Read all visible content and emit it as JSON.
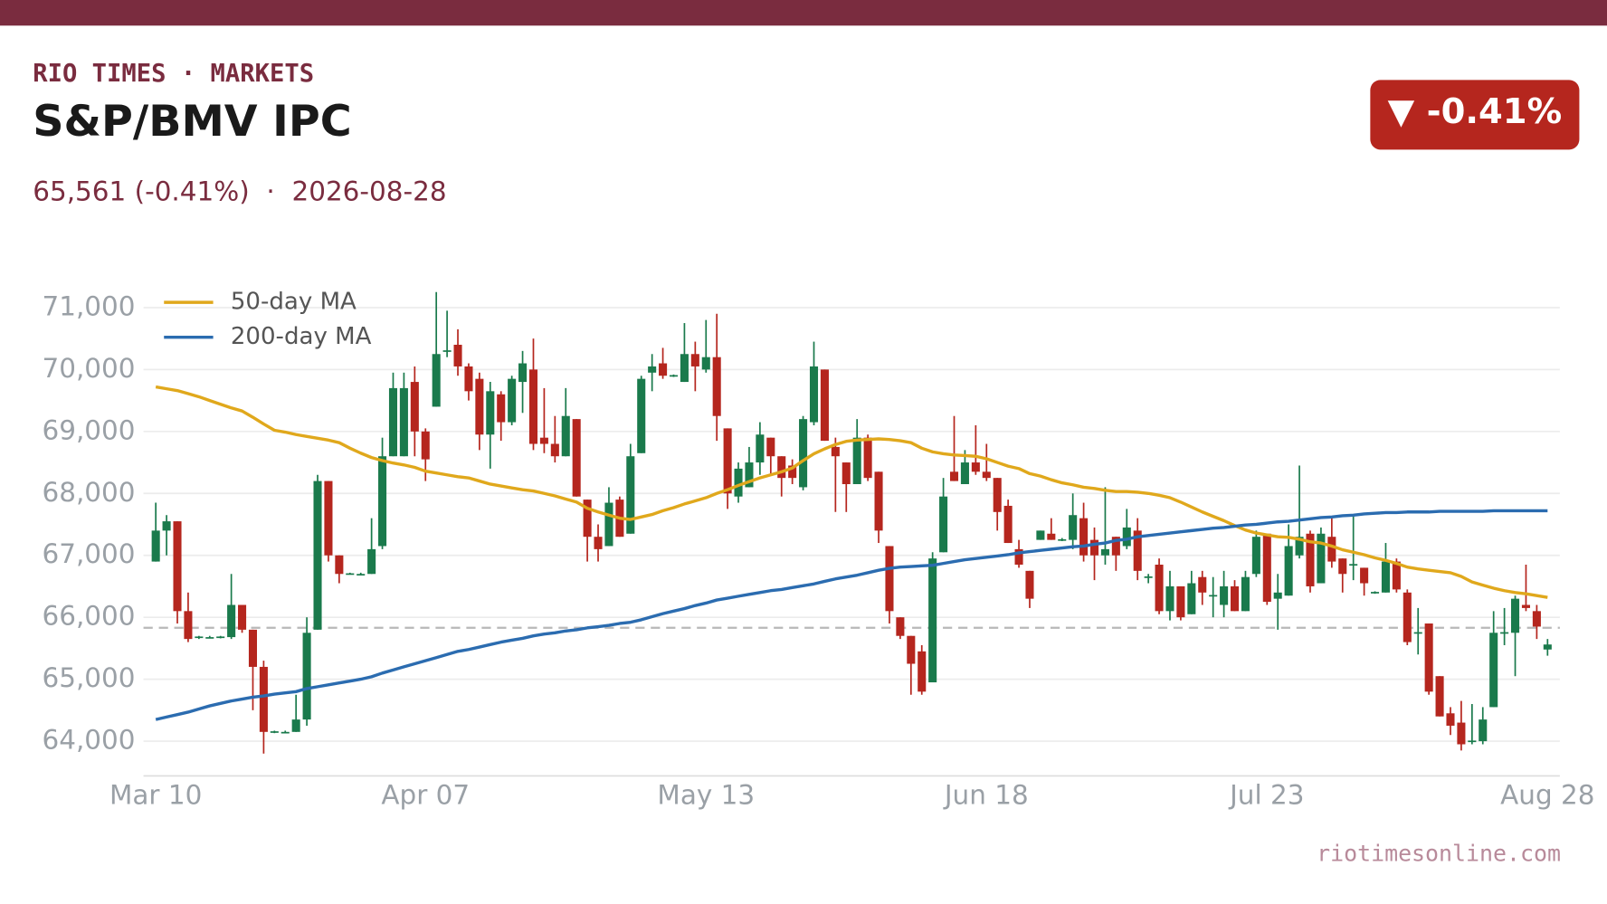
{
  "header": {
    "brand": "RIO TIMES · MARKETS",
    "title": "S&P/BMV IPC",
    "subtitle": "65,561 (-0.41%)  ·  2026-08-28",
    "badge": "▼ -0.41%"
  },
  "footer": "riotimesonline.com",
  "chart_data": {
    "type": "candlestick",
    "categories": [
      "Mar 10",
      null,
      null,
      null,
      null,
      null,
      null,
      null,
      null,
      null,
      null,
      null,
      null,
      null,
      null,
      null,
      null,
      null,
      null,
      null,
      null,
      null,
      null,
      null,
      null,
      "Apr 07",
      null,
      null,
      null,
      null,
      null,
      null,
      null,
      null,
      null,
      null,
      null,
      null,
      null,
      null,
      null,
      null,
      null,
      null,
      null,
      null,
      null,
      null,
      null,
      null,
      null,
      "May 13",
      null,
      null,
      null,
      null,
      null,
      null,
      null,
      null,
      null,
      null,
      null,
      null,
      null,
      null,
      null,
      null,
      null,
      null,
      null,
      null,
      null,
      null,
      null,
      null,
      null,
      "Jun 18",
      null,
      null,
      null,
      null,
      null,
      null,
      null,
      null,
      null,
      null,
      null,
      null,
      null,
      null,
      null,
      null,
      null,
      null,
      null,
      null,
      null,
      null,
      null,
      null,
      null,
      "Jul 23",
      null,
      null,
      null,
      null,
      null,
      null,
      null,
      null,
      null,
      null,
      null,
      null,
      null,
      null,
      null,
      null,
      null,
      null,
      null,
      null,
      null,
      null,
      null,
      null,
      null,
      "Aug 28"
    ],
    "open": [
      66900,
      67400,
      67550,
      66100,
      65680,
      65680,
      65680,
      65680,
      66200,
      65800,
      65200,
      64150,
      64150,
      64150,
      64350,
      65800,
      68200,
      67000,
      66700,
      66700,
      66700,
      67150,
      68600,
      68600,
      69800,
      69000,
      69400,
      70300,
      70400,
      70050,
      69850,
      68950,
      69600,
      69150,
      69800,
      70000,
      68900,
      68800,
      68600,
      69200,
      67900,
      67300,
      67150,
      67900,
      67350,
      68650,
      69950,
      70100,
      69900,
      69800,
      70250,
      70000,
      70200,
      69050,
      67950,
      68100,
      68500,
      68900,
      68600,
      68450,
      68100,
      69150,
      70000,
      68750,
      68500,
      68150,
      68900,
      68350,
      67150,
      66000,
      65700,
      65450,
      64950,
      67050,
      68350,
      68150,
      68500,
      68350,
      68250,
      67800,
      67100,
      66750,
      67250,
      67350,
      67250,
      67250,
      67600,
      67250,
      67000,
      67300,
      67150,
      67400,
      66650,
      66850,
      66100,
      66500,
      66050,
      66650,
      66350,
      66200,
      66500,
      66100,
      66700,
      67350,
      66300,
      66350,
      67000,
      67350,
      66550,
      67300,
      66950,
      66850,
      66800,
      66400,
      66400,
      66900,
      66400,
      65750,
      65900,
      65050,
      64450,
      64300,
      64000,
      64000,
      64550,
      65750,
      65750,
      66200,
      66100,
      65480
    ],
    "high": [
      67850,
      67650,
      67550,
      66400,
      65700,
      65700,
      65700,
      66700,
      66200,
      65800,
      65300,
      64170,
      64170,
      64750,
      66000,
      68300,
      68200,
      67000,
      66720,
      66720,
      67600,
      68900,
      69950,
      69950,
      70050,
      69050,
      71250,
      70950,
      70650,
      70100,
      69950,
      69800,
      69650,
      69900,
      70300,
      70500,
      69700,
      69250,
      69700,
      69200,
      67900,
      67500,
      68100,
      67950,
      68800,
      69900,
      70250,
      70350,
      69920,
      70750,
      70450,
      70800,
      70900,
      69050,
      68500,
      68750,
      69150,
      68900,
      68600,
      68550,
      69250,
      70450,
      70000,
      68900,
      68500,
      69200,
      68950,
      68350,
      67150,
      66000,
      65700,
      65550,
      67050,
      68250,
      69250,
      68700,
      69100,
      68800,
      68250,
      67900,
      67250,
      66750,
      67400,
      67600,
      67280,
      68000,
      67850,
      67450,
      68100,
      67300,
      67750,
      67600,
      66700,
      66950,
      66750,
      66500,
      66750,
      66750,
      66650,
      66750,
      66600,
      66750,
      67400,
      67350,
      66700,
      67500,
      68450,
      67400,
      67450,
      67600,
      66950,
      67650,
      66800,
      66420,
      67200,
      66950,
      66450,
      66150,
      65900,
      65050,
      64550,
      64650,
      64600,
      64550,
      66100,
      66150,
      66350,
      66850,
      66200,
      65650
    ],
    "low": [
      66900,
      67000,
      65900,
      65600,
      65650,
      65660,
      65660,
      65650,
      65750,
      64500,
      63800,
      64130,
      64130,
      64150,
      64250,
      65800,
      66900,
      66550,
      66690,
      66690,
      66700,
      67100,
      68600,
      68600,
      68600,
      68200,
      69400,
      70200,
      69900,
      69500,
      68700,
      68400,
      68850,
      69100,
      69300,
      68700,
      68650,
      68500,
      68600,
      67950,
      66900,
      66900,
      67150,
      67300,
      67350,
      68650,
      69650,
      69850,
      69880,
      69800,
      69650,
      69950,
      68850,
      67750,
      67850,
      68100,
      68300,
      68300,
      67950,
      68150,
      68050,
      69100,
      68850,
      67700,
      67700,
      68150,
      68200,
      67200,
      65900,
      65650,
      64750,
      64750,
      64950,
      67050,
      68200,
      68150,
      68300,
      68200,
      67400,
      67200,
      66800,
      66150,
      67250,
      67250,
      67230,
      67100,
      66900,
      66600,
      66850,
      66750,
      67100,
      66600,
      66550,
      66050,
      65950,
      65950,
      66050,
      66200,
      66000,
      66000,
      66100,
      66100,
      66650,
      66200,
      65800,
      66350,
      66950,
      66400,
      66550,
      66800,
      66400,
      66600,
      66350,
      66380,
      66400,
      66400,
      65550,
      65400,
      64750,
      64400,
      64100,
      63850,
      63950,
      63950,
      64550,
      65550,
      65050,
      66100,
      65650,
      65380
    ],
    "close": [
      67400,
      67550,
      66100,
      65650,
      65690,
      65680,
      65690,
      66200,
      65800,
      65200,
      64150,
      64160,
      64150,
      64350,
      65750,
      68200,
      67000,
      66700,
      66710,
      66700,
      67100,
      68600,
      69700,
      69700,
      69000,
      68550,
      70250,
      70310,
      70050,
      69650,
      68950,
      69650,
      69150,
      69850,
      70100,
      68800,
      68800,
      68600,
      69250,
      67950,
      67300,
      67100,
      67850,
      67300,
      68600,
      69850,
      70050,
      69900,
      69910,
      70250,
      70050,
      70200,
      69250,
      68000,
      68400,
      68500,
      68950,
      68600,
      68250,
      68250,
      69200,
      70050,
      68850,
      68600,
      68150,
      68900,
      68250,
      67400,
      66100,
      65700,
      65250,
      64800,
      66950,
      67950,
      68200,
      68500,
      68350,
      68250,
      67700,
      67200,
      66850,
      66300,
      67400,
      67250,
      67260,
      67650,
      67000,
      67000,
      67100,
      67000,
      67450,
      66750,
      66660,
      66100,
      66500,
      66000,
      66550,
      66400,
      66360,
      66500,
      66100,
      66650,
      67300,
      66250,
      66400,
      67150,
      67300,
      66500,
      67350,
      66900,
      66700,
      66860,
      66550,
      66410,
      66900,
      66450,
      65600,
      65760,
      64800,
      64400,
      64250,
      63950,
      64010,
      64350,
      65750,
      65760,
      66300,
      66150,
      65850,
      65561
    ],
    "up_color": "#1a7a4c",
    "down_color": "#b5261e",
    "series": [
      {
        "name": "50-day MA",
        "color": "#e0a81c",
        "values": [
          69720,
          69690,
          69660,
          69610,
          69560,
          69500,
          69440,
          69380,
          69330,
          69230,
          69120,
          69020,
          68990,
          68950,
          68920,
          68890,
          68860,
          68820,
          68730,
          68650,
          68580,
          68530,
          68490,
          68460,
          68420,
          68360,
          68330,
          68300,
          68270,
          68250,
          68200,
          68150,
          68120,
          68090,
          68060,
          68040,
          68000,
          67960,
          67910,
          67860,
          67760,
          67700,
          67650,
          67600,
          67580,
          67620,
          67660,
          67720,
          67770,
          67830,
          67880,
          67930,
          68000,
          68060,
          68130,
          68190,
          68250,
          68300,
          68350,
          68410,
          68530,
          68640,
          68720,
          68790,
          68840,
          68860,
          68870,
          68880,
          68870,
          68850,
          68820,
          68730,
          68670,
          68640,
          68620,
          68610,
          68600,
          68560,
          68500,
          68440,
          68400,
          68320,
          68280,
          68220,
          68170,
          68140,
          68100,
          68080,
          68050,
          68030,
          68030,
          68020,
          68000,
          67970,
          67930,
          67860,
          67780,
          67700,
          67630,
          67560,
          67480,
          67410,
          67360,
          67330,
          67300,
          67290,
          67260,
          67220,
          67200,
          67150,
          67090,
          67050,
          67010,
          66960,
          66920,
          66870,
          66810,
          66780,
          66760,
          66740,
          66720,
          66660,
          66570,
          66520,
          66470,
          66430,
          66400,
          66380,
          66350,
          66320
        ]
      },
      {
        "name": "200-day MA",
        "color": "#2b6cb0",
        "values": [
          64350,
          64390,
          64430,
          64470,
          64520,
          64570,
          64610,
          64650,
          64680,
          64710,
          64730,
          64760,
          64780,
          64800,
          64850,
          64880,
          64910,
          64940,
          64970,
          65000,
          65040,
          65100,
          65150,
          65200,
          65250,
          65300,
          65350,
          65400,
          65450,
          65480,
          65520,
          65560,
          65600,
          65630,
          65660,
          65700,
          65730,
          65750,
          65780,
          65800,
          65830,
          65850,
          65870,
          65900,
          65920,
          65960,
          66010,
          66060,
          66100,
          66140,
          66190,
          66230,
          66280,
          66310,
          66340,
          66370,
          66400,
          66430,
          66450,
          66480,
          66510,
          66540,
          66580,
          66620,
          66650,
          66680,
          66720,
          66760,
          66790,
          66810,
          66820,
          66830,
          66840,
          66870,
          66900,
          66930,
          66950,
          66970,
          66990,
          67010,
          67040,
          67060,
          67080,
          67100,
          67120,
          67140,
          67150,
          67180,
          67200,
          67240,
          67260,
          67300,
          67320,
          67340,
          67360,
          67380,
          67400,
          67420,
          67440,
          67450,
          67470,
          67490,
          67500,
          67520,
          67540,
          67550,
          67570,
          67590,
          67610,
          67620,
          67640,
          67650,
          67670,
          67680,
          67690,
          67690,
          67700,
          67700,
          67700,
          67710,
          67710,
          67710,
          67710,
          67710,
          67720,
          67720,
          67720,
          67720,
          67720,
          67720
        ]
      }
    ],
    "reference_line": 65831,
    "ylim": [
      63440,
      71250
    ],
    "yticks": [
      {
        "value": 64000,
        "label": "64,000"
      },
      {
        "value": 65000,
        "label": "65,000"
      },
      {
        "value": 66000,
        "label": "66,000"
      },
      {
        "value": 67000,
        "label": "67,000"
      },
      {
        "value": 68000,
        "label": "68,000"
      },
      {
        "value": 69000,
        "label": "69,000"
      },
      {
        "value": 70000,
        "label": "70,000"
      },
      {
        "value": 71000,
        "label": "71,000"
      }
    ],
    "grid": true,
    "legend": "upper left"
  }
}
